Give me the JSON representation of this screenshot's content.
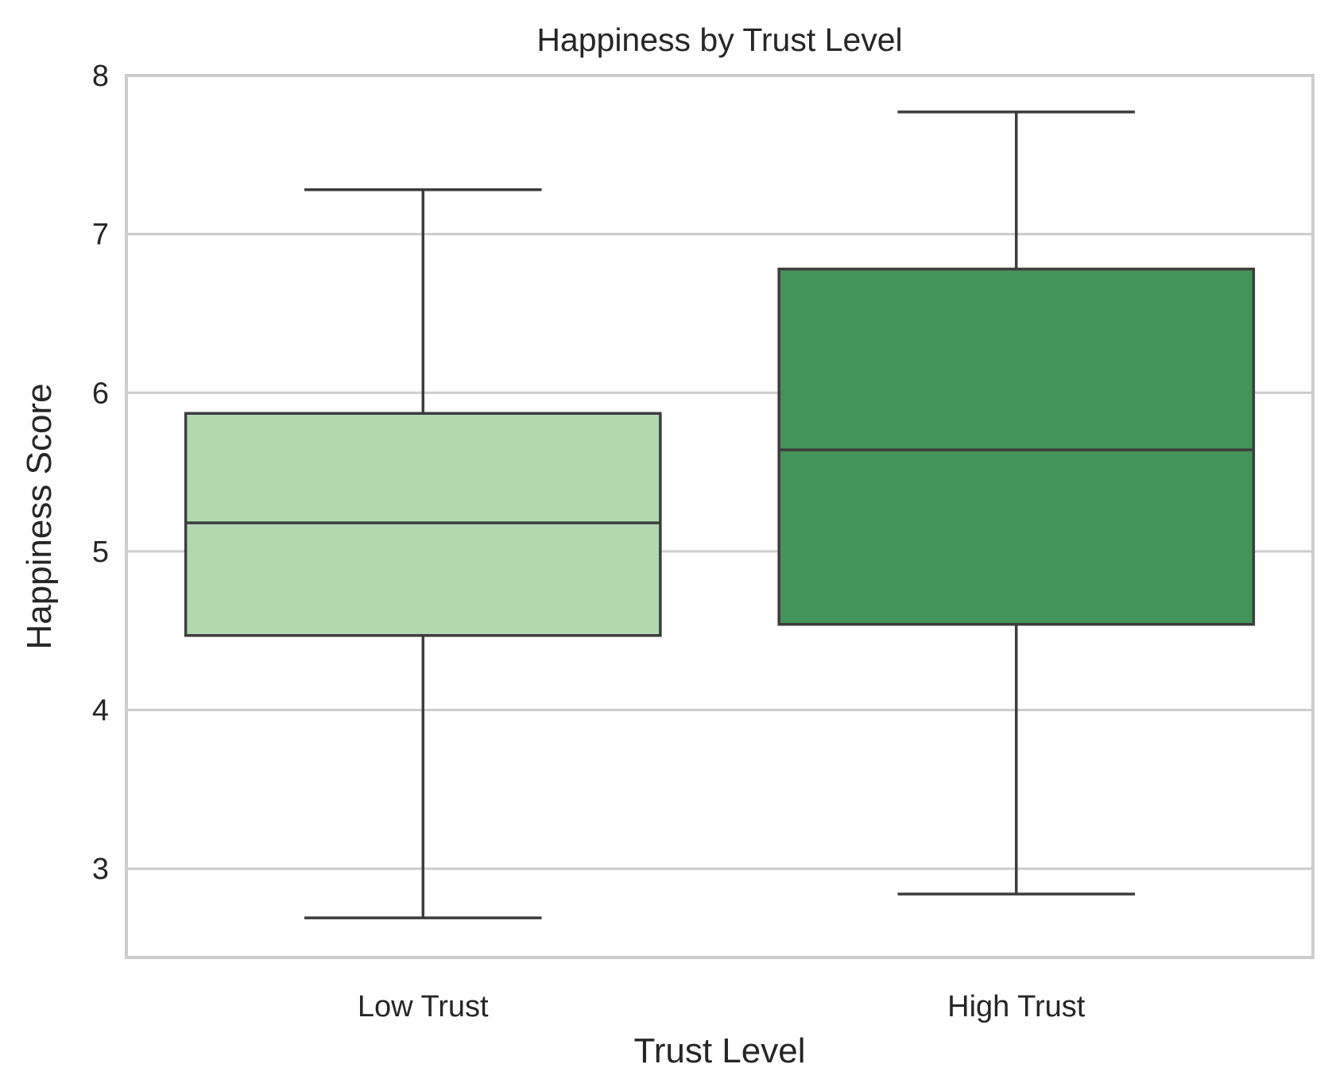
{
  "chart_data": {
    "type": "box",
    "title": "Happiness by Trust Level",
    "xlabel": "Trust Level",
    "ylabel": "Happiness Score",
    "categories": [
      "Low Trust",
      "High Trust"
    ],
    "boxes": [
      {
        "category": "Low Trust",
        "min": 2.69,
        "q1": 4.47,
        "median": 5.18,
        "q3": 5.87,
        "max": 7.28,
        "color": "#b3d8b0"
      },
      {
        "category": "High Trust",
        "min": 2.84,
        "q1": 4.54,
        "median": 5.64,
        "q3": 6.78,
        "max": 7.77,
        "color": "#44935b"
      }
    ],
    "ylim": [
      2.44,
      8.0
    ],
    "yticks": [
      "3",
      "4",
      "5",
      "6",
      "7",
      "8"
    ],
    "grid": true,
    "grid_axis": "y",
    "colors": {
      "grid": "#cccccc",
      "frame": "#cccccc",
      "line": "#3d3d3d"
    }
  }
}
